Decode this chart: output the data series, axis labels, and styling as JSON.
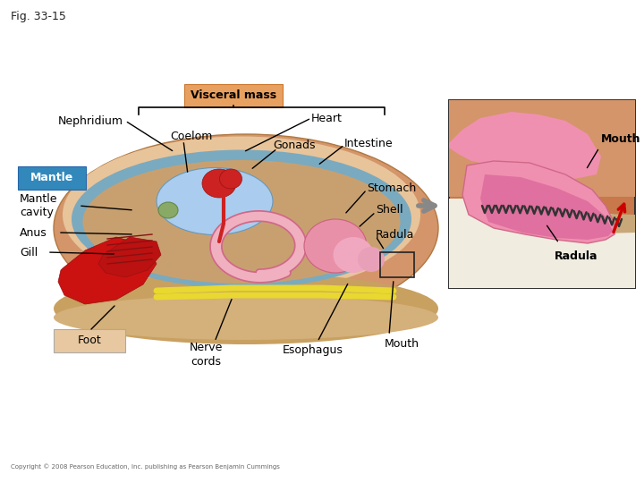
{
  "title": "Fig. 33-15",
  "bg_color": "#ffffff",
  "colors": {
    "background": "#ffffff",
    "body_outer": "#d4956a",
    "body_inner": "#e8c49a",
    "mantle_stripe": "#7aaabf",
    "mantle_inner": "#c8a070",
    "coelom": "#aaccee",
    "heart_red": "#cc2222",
    "intestine_pink": "#e880a0",
    "intestine_light": "#f0b0c0",
    "stomach_pink": "#e890a8",
    "gill_red": "#aa1111",
    "foot_red": "#cc2222",
    "nerve_yellow": "#e8d830",
    "mantle_label_bg": "#3388bb",
    "mantle_label_fg": "#ffffff",
    "visceral_label_bg": "#e8a060",
    "visceral_label_border": "#cc7830",
    "foot_label_bg": "#e8c8a0",
    "inset_bg": "#c8784a",
    "inset_tan": "#d4956a",
    "inset_pink": "#f090b0",
    "inset_border": "#333333",
    "arrow_gray": "#999999",
    "arrow_red": "#cc0000",
    "copyright": "#666666"
  },
  "labels": {
    "nephridium": "Nephridium",
    "visceral_mass": "Visceral mass",
    "heart": "Heart",
    "coelom": "Coelom",
    "intestine": "Intestine",
    "gonads": "Gonads",
    "mantle": "Mantle",
    "mantle_cavity": "Mantle\ncavity",
    "stomach": "Stomach",
    "shell": "Shell",
    "radula_main": "Radula",
    "anus": "Anus",
    "gill": "Gill",
    "foot": "Foot",
    "nerve_cords": "Nerve\ncords",
    "esophagus": "Esophagus",
    "mouth_main": "Mouth",
    "mouth_inset": "Mouth",
    "radula_inset": "Radula"
  },
  "copyright": "Copyright © 2008 Pearson Education, Inc. publishing as Pearson Benjamin Cummings"
}
